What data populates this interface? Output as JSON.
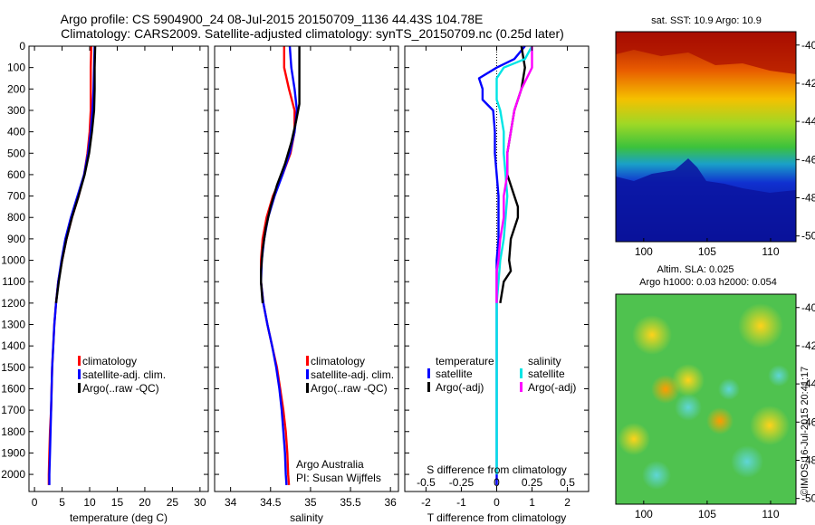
{
  "header": {
    "title_line1": "Argo profile: CS 5904900_24 08-Jul-2015 20150709_1136 44.43S 104.78E",
    "title_line2": "Climatology: CARS2009. Satellite-adjusted climatology: synTS_20150709.nc (0.25d later)"
  },
  "colors": {
    "climatology": "#ff0000",
    "satellite": "#0000ff",
    "argo": "#000000",
    "satellite_salinity": "#00e5e5",
    "argo_salinity": "#ff00ff"
  },
  "legend_profiles": {
    "climatology": "climatology",
    "satellite": "satellite-adj. clim.",
    "argo": "Argo(..raw -QC)"
  },
  "legend_diff": {
    "temperature_head": "temperature",
    "salinity_head": "salinity",
    "satellite": "satellite",
    "argo": "Argo(-adj)"
  },
  "credits": {
    "line1": "Argo Australia",
    "line2": "PI: Susan Wijffels",
    "imos": "©IMOS 16-Jul-2015 20:41:17"
  },
  "maps": {
    "sst_title": "sat. SST: 10.9 Argo: 10.9",
    "sla_title_line1": "Altim. SLA: 0.025",
    "sla_title_line2": "Argo h1000: 0.03 h2000: 0.054",
    "lat_ticks": [
      "-40",
      "-42",
      "-44",
      "-46",
      "-48",
      "-50"
    ],
    "lon_ticks": [
      "100",
      "105",
      "110"
    ]
  },
  "chart_data": [
    {
      "type": "line",
      "xlabel": "temperature (deg C)",
      "ylabel": "",
      "xlim": [
        -1,
        31.5
      ],
      "ylim": [
        2080,
        0
      ],
      "xticks": [
        0,
        5,
        10,
        15,
        20,
        25,
        30
      ],
      "yticks": [
        0,
        100,
        200,
        300,
        400,
        500,
        600,
        700,
        800,
        900,
        1000,
        1100,
        1200,
        1300,
        1400,
        1500,
        1600,
        1700,
        1800,
        1900,
        2000
      ],
      "series": [
        {
          "name": "climatology",
          "color": "#ff0000",
          "points": [
            [
              10.3,
              0
            ],
            [
              10.2,
              100
            ],
            [
              10.2,
              200
            ],
            [
              10.2,
              300
            ],
            [
              10.0,
              400
            ],
            [
              9.6,
              500
            ],
            [
              9.0,
              600
            ],
            [
              8.0,
              700
            ],
            [
              6.8,
              800
            ],
            [
              5.8,
              900
            ],
            [
              5.0,
              1000
            ],
            [
              4.3,
              1100
            ],
            [
              3.9,
              1200
            ],
            [
              3.6,
              1300
            ],
            [
              3.4,
              1400
            ],
            [
              3.2,
              1500
            ],
            [
              3.1,
              1600
            ],
            [
              3.0,
              1700
            ],
            [
              2.8,
              1800
            ],
            [
              2.7,
              1900
            ],
            [
              2.6,
              2000
            ],
            [
              2.6,
              2050
            ]
          ]
        },
        {
          "name": "satellite-adj. clim.",
          "color": "#0000ff",
          "points": [
            [
              10.9,
              0
            ],
            [
              10.8,
              100
            ],
            [
              10.7,
              200
            ],
            [
              10.5,
              300
            ],
            [
              10.2,
              400
            ],
            [
              9.7,
              500
            ],
            [
              9.0,
              600
            ],
            [
              7.8,
              700
            ],
            [
              6.6,
              800
            ],
            [
              5.6,
              900
            ],
            [
              4.9,
              1000
            ],
            [
              4.3,
              1100
            ],
            [
              3.9,
              1200
            ],
            [
              3.6,
              1300
            ],
            [
              3.4,
              1400
            ],
            [
              3.2,
              1500
            ],
            [
              3.1,
              1600
            ],
            [
              3.0,
              1700
            ],
            [
              2.9,
              1800
            ],
            [
              2.8,
              1900
            ],
            [
              2.7,
              2000
            ],
            [
              2.7,
              2050
            ]
          ]
        },
        {
          "name": "Argo(..raw -QC)",
          "color": "#000000",
          "points": [
            [
              11.0,
              0
            ],
            [
              10.9,
              100
            ],
            [
              10.9,
              200
            ],
            [
              10.8,
              300
            ],
            [
              10.4,
              400
            ],
            [
              9.9,
              500
            ],
            [
              9.1,
              600
            ],
            [
              8.0,
              700
            ],
            [
              6.8,
              800
            ],
            [
              5.8,
              900
            ],
            [
              5.0,
              1000
            ],
            [
              4.4,
              1100
            ],
            [
              3.9,
              1200
            ]
          ]
        }
      ]
    },
    {
      "type": "line",
      "xlabel": "salinity",
      "ylabel": "",
      "xlim": [
        33.8,
        36.1
      ],
      "ylim": [
        2080,
        0
      ],
      "xticks": [
        34,
        34.5,
        35,
        35.5,
        36
      ],
      "series": [
        {
          "name": "climatology",
          "color": "#ff0000",
          "points": [
            [
              34.67,
              0
            ],
            [
              34.67,
              100
            ],
            [
              34.73,
              200
            ],
            [
              34.8,
              300
            ],
            [
              34.8,
              400
            ],
            [
              34.75,
              500
            ],
            [
              34.65,
              600
            ],
            [
              34.53,
              700
            ],
            [
              34.45,
              800
            ],
            [
              34.4,
              900
            ],
            [
              34.38,
              1000
            ],
            [
              34.38,
              1100
            ],
            [
              34.41,
              1200
            ],
            [
              34.46,
              1300
            ],
            [
              34.52,
              1400
            ],
            [
              34.58,
              1500
            ],
            [
              34.62,
              1600
            ],
            [
              34.66,
              1700
            ],
            [
              34.69,
              1800
            ],
            [
              34.71,
              1900
            ],
            [
              34.72,
              2000
            ],
            [
              34.73,
              2050
            ]
          ]
        },
        {
          "name": "satellite-adj. clim.",
          "color": "#0000ff",
          "points": [
            [
              34.74,
              0
            ],
            [
              34.76,
              100
            ],
            [
              34.8,
              200
            ],
            [
              34.83,
              300
            ],
            [
              34.8,
              400
            ],
            [
              34.74,
              500
            ],
            [
              34.65,
              600
            ],
            [
              34.55,
              700
            ],
            [
              34.47,
              800
            ],
            [
              34.42,
              900
            ],
            [
              34.39,
              1000
            ],
            [
              34.38,
              1100
            ],
            [
              34.41,
              1200
            ],
            [
              34.46,
              1300
            ],
            [
              34.52,
              1400
            ],
            [
              34.57,
              1500
            ],
            [
              34.61,
              1600
            ],
            [
              34.64,
              1700
            ],
            [
              34.66,
              1800
            ],
            [
              34.68,
              1900
            ],
            [
              34.69,
              2000
            ],
            [
              34.7,
              2050
            ]
          ]
        },
        {
          "name": "Argo(..raw -QC)",
          "color": "#000000",
          "points": [
            [
              34.86,
              0
            ],
            [
              34.86,
              100
            ],
            [
              34.86,
              200
            ],
            [
              34.86,
              270
            ],
            [
              34.82,
              350
            ],
            [
              34.76,
              450
            ],
            [
              34.68,
              550
            ],
            [
              34.58,
              650
            ],
            [
              34.5,
              750
            ],
            [
              34.44,
              850
            ],
            [
              34.4,
              950
            ],
            [
              34.38,
              1050
            ],
            [
              34.38,
              1100
            ],
            [
              34.4,
              1200
            ]
          ]
        }
      ]
    },
    {
      "type": "line",
      "xlabel": "T difference from climatology",
      "x2label": "S difference from climatology",
      "ylabel": "",
      "xlim": [
        -2.6,
        2.6
      ],
      "ylim": [
        2080,
        0
      ],
      "xticks": [
        -2,
        -1,
        0,
        1,
        2
      ],
      "x2ticks": [
        -0.5,
        -0.25,
        0,
        0.25,
        0.5
      ],
      "series": [
        {
          "name": "temperature satellite",
          "color": "#0000ff",
          "points": [
            [
              0.8,
              0
            ],
            [
              0.5,
              60
            ],
            [
              0.0,
              100
            ],
            [
              -0.5,
              150
            ],
            [
              -0.4,
              200
            ],
            [
              -0.4,
              250
            ],
            [
              -0.1,
              300
            ],
            [
              -0.05,
              400
            ],
            [
              -0.05,
              500
            ],
            [
              0.0,
              600
            ],
            [
              0.05,
              700
            ],
            [
              0.05,
              800
            ],
            [
              0.05,
              900
            ],
            [
              0.0,
              1000
            ],
            [
              0.0,
              1100
            ],
            [
              0.0,
              1200
            ],
            [
              0.0,
              1300
            ],
            [
              0.0,
              1400
            ],
            [
              0.0,
              1600
            ],
            [
              0.0,
              1800
            ],
            [
              0.0,
              2000
            ],
            [
              0.0,
              2050
            ]
          ]
        },
        {
          "name": "temperature Argo(-adj)",
          "color": "#000000",
          "points": [
            [
              0.7,
              0
            ],
            [
              0.8,
              100
            ],
            [
              0.7,
              200
            ],
            [
              0.5,
              300
            ],
            [
              0.4,
              400
            ],
            [
              0.3,
              500
            ],
            [
              0.3,
              600
            ],
            [
              0.5,
              700
            ],
            [
              0.6,
              750
            ],
            [
              0.6,
              800
            ],
            [
              0.4,
              900
            ],
            [
              0.35,
              1000
            ],
            [
              0.4,
              1050
            ],
            [
              0.2,
              1100
            ],
            [
              0.1,
              1200
            ]
          ]
        },
        {
          "name": "salinity satellite",
          "color": "#00e5e5",
          "points": [
            [
              1.0,
              0
            ],
            [
              0.8,
              60
            ],
            [
              0.2,
              100
            ],
            [
              0.0,
              150
            ],
            [
              0.0,
              250
            ],
            [
              0.1,
              300
            ],
            [
              0.2,
              400
            ],
            [
              0.2,
              500
            ],
            [
              0.25,
              600
            ],
            [
              0.3,
              700
            ],
            [
              0.25,
              800
            ],
            [
              0.2,
              900
            ],
            [
              0.1,
              1000
            ],
            [
              0.05,
              1100
            ],
            [
              0.0,
              1200
            ],
            [
              0.0,
              1400
            ],
            [
              0.0,
              1600
            ],
            [
              0.0,
              1800
            ],
            [
              0.0,
              1950
            ],
            [
              0.0,
              2000
            ]
          ]
        },
        {
          "name": "salinity Argo(-adj)",
          "color": "#ff00ff",
          "points": [
            [
              1.0,
              0
            ],
            [
              1.0,
              100
            ],
            [
              0.7,
              200
            ],
            [
              0.5,
              300
            ],
            [
              0.4,
              400
            ],
            [
              0.3,
              500
            ],
            [
              0.3,
              600
            ],
            [
              0.2,
              700
            ],
            [
              0.2,
              800
            ],
            [
              0.1,
              900
            ],
            [
              0.05,
              1000
            ],
            [
              0.0,
              1050
            ],
            [
              0.0,
              1100
            ],
            [
              0.0,
              1200
            ]
          ]
        }
      ]
    }
  ]
}
